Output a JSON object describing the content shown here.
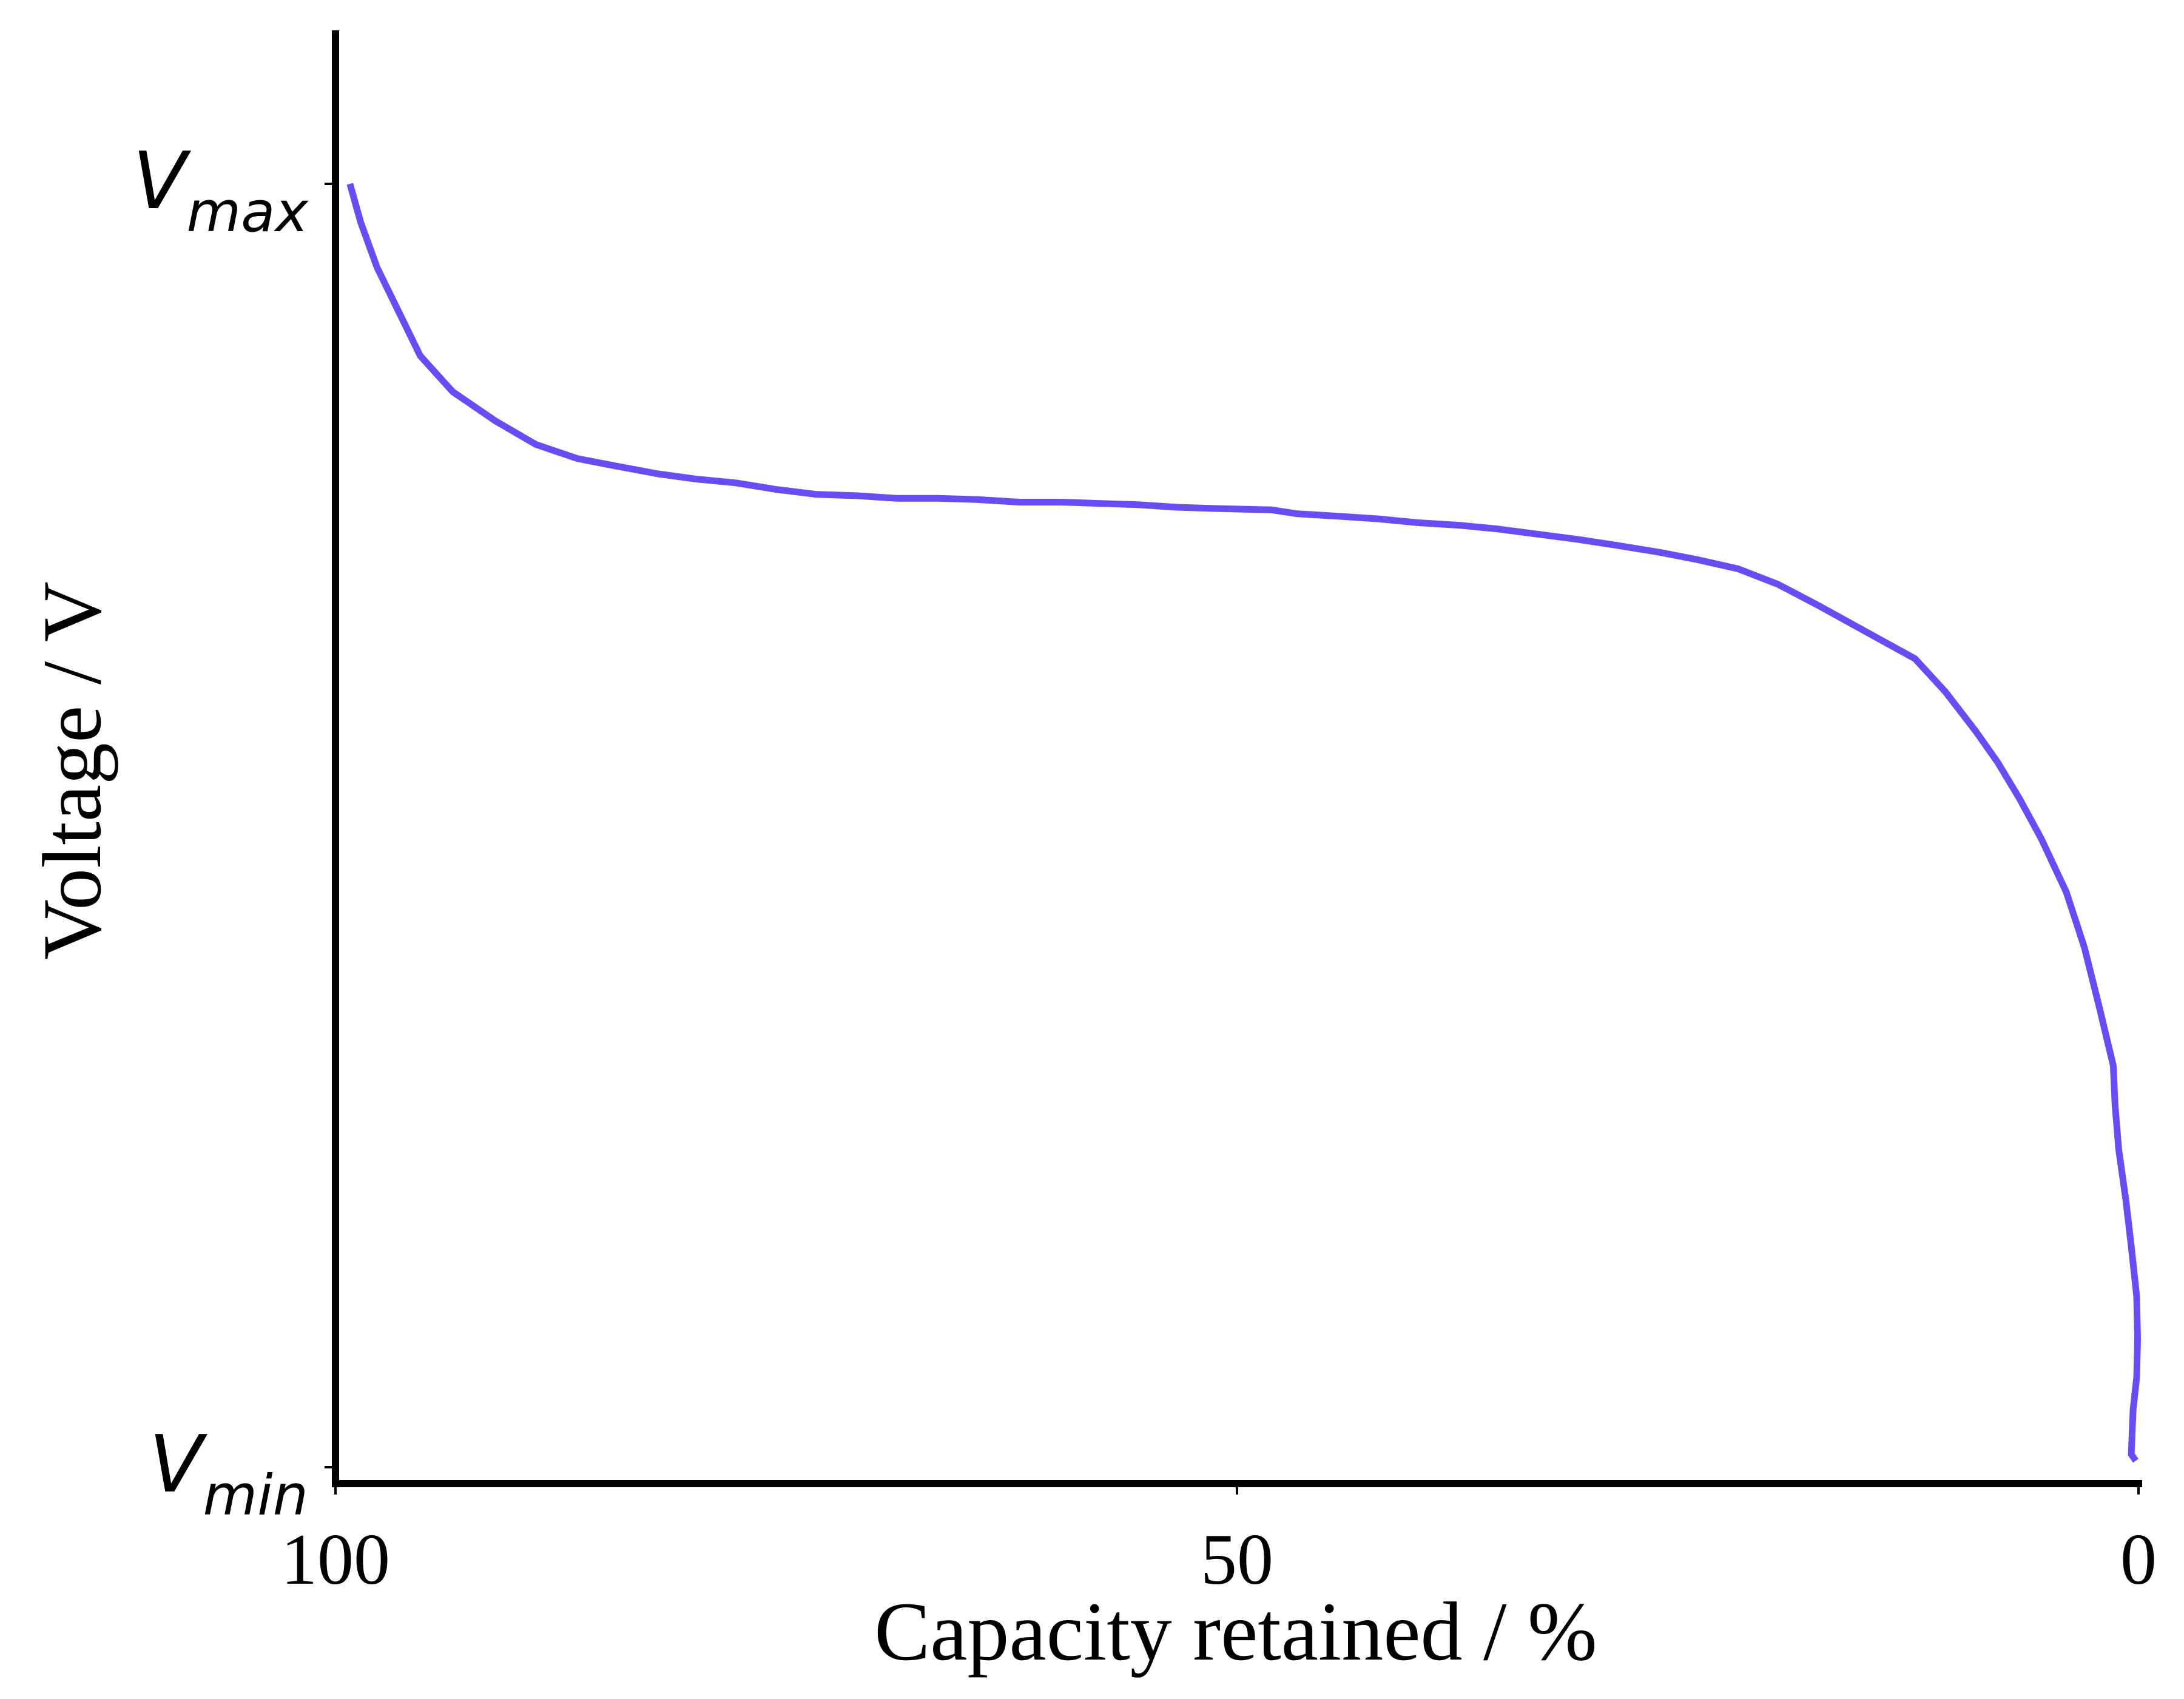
{
  "chart_data": {
    "type": "line",
    "title": "",
    "xlabel": "Capacity retained / %",
    "ylabel": "Voltage / V",
    "x_ticks": [
      {
        "value": 100,
        "label": "100"
      },
      {
        "value": 50,
        "label": "50"
      },
      {
        "value": 0,
        "label": "0"
      }
    ],
    "y_ticks": [
      {
        "value": 1,
        "main": "V",
        "sub": "max"
      },
      {
        "value": 0,
        "main": "V",
        "sub": "min"
      }
    ],
    "xlim": [
      100,
      0
    ],
    "ylim": [
      -0.02,
      1.12
    ],
    "x_reversed": true,
    "grid": false,
    "legend": "none",
    "series": [
      {
        "color": "#6a4cf5",
        "points": [
          [
            99.2,
            1.0
          ],
          [
            98.6,
            0.97
          ],
          [
            97.7,
            0.935
          ],
          [
            95.3,
            0.866
          ],
          [
            93.5,
            0.838
          ],
          [
            91.1,
            0.815
          ],
          [
            88.9,
            0.797
          ],
          [
            86.6,
            0.786
          ],
          [
            84.4,
            0.78
          ],
          [
            82.1,
            0.774
          ],
          [
            80.0,
            0.77
          ],
          [
            77.8,
            0.767
          ],
          [
            75.6,
            0.762
          ],
          [
            73.3,
            0.758
          ],
          [
            71.1,
            0.757
          ],
          [
            68.9,
            0.755
          ],
          [
            66.6,
            0.755
          ],
          [
            64.4,
            0.754
          ],
          [
            62.1,
            0.752
          ],
          [
            59.8,
            0.752
          ],
          [
            57.7,
            0.751
          ],
          [
            55.5,
            0.75
          ],
          [
            53.3,
            0.748
          ],
          [
            51.1,
            0.747
          ],
          [
            48.1,
            0.746
          ],
          [
            46.7,
            0.743
          ],
          [
            44.4,
            0.741
          ],
          [
            42.2,
            0.739
          ],
          [
            40.0,
            0.736
          ],
          [
            37.7,
            0.734
          ],
          [
            35.5,
            0.731
          ],
          [
            33.3,
            0.727
          ],
          [
            31.1,
            0.723
          ],
          [
            28.8,
            0.718
          ],
          [
            26.6,
            0.713
          ],
          [
            24.4,
            0.707
          ],
          [
            22.2,
            0.7
          ],
          [
            20.0,
            0.688
          ],
          [
            17.7,
            0.671
          ],
          [
            15.5,
            0.654
          ],
          [
            12.4,
            0.63
          ],
          [
            10.7,
            0.604
          ],
          [
            9.0,
            0.573
          ],
          [
            7.8,
            0.549
          ],
          [
            6.6,
            0.521
          ],
          [
            5.4,
            0.49
          ],
          [
            4.0,
            0.448
          ],
          [
            3.0,
            0.405
          ],
          [
            2.2,
            0.36
          ],
          [
            1.4,
            0.313
          ],
          [
            1.3,
            0.282
          ],
          [
            1.1,
            0.248
          ],
          [
            0.7,
            0.208
          ],
          [
            0.4,
            0.172
          ],
          [
            0.1,
            0.133
          ],
          [
            0.05,
            0.1
          ],
          [
            0.1,
            0.07
          ],
          [
            0.3,
            0.045
          ],
          [
            0.4,
            0.01
          ],
          [
            0.15,
            0.005
          ]
        ]
      }
    ]
  }
}
